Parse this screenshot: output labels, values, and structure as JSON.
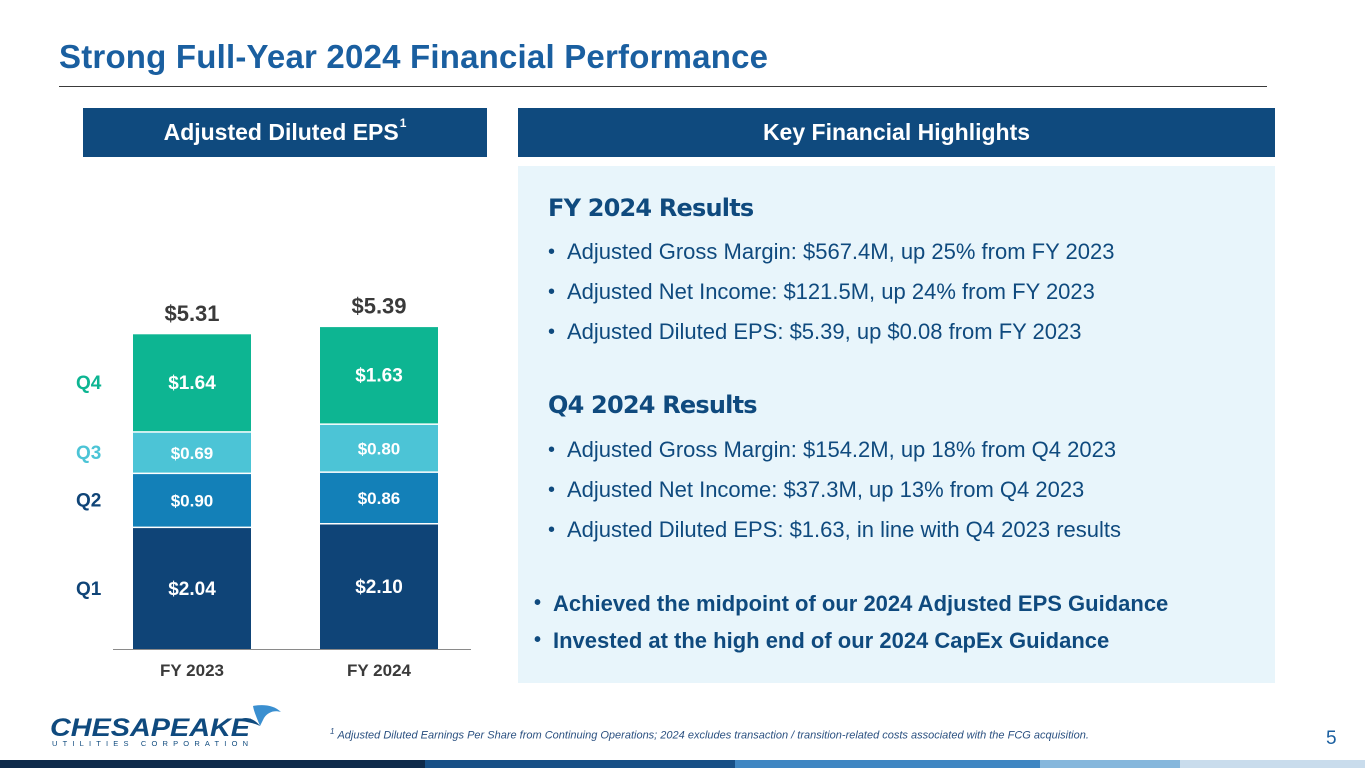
{
  "title": "Strong Full-Year 2024 Financial Performance",
  "left_panel": {
    "header": "Adjusted Diluted EPS",
    "header_sup": "1"
  },
  "right_panel": {
    "header": "Key Financial Highlights"
  },
  "chart_data": {
    "type": "bar",
    "stacked": true,
    "title": "Adjusted Diluted EPS",
    "categories": [
      "FY 2023",
      "FY 2024"
    ],
    "totals": [
      "$5.31",
      "$5.39"
    ],
    "series": [
      {
        "name": "Q1",
        "values": [
          2.04,
          2.1
        ],
        "labels": [
          "$2.04",
          "$2.10"
        ],
        "color": "#0f4477"
      },
      {
        "name": "Q2",
        "values": [
          0.9,
          0.86
        ],
        "labels": [
          "$0.90",
          "$0.86"
        ],
        "color": "#1380b8"
      },
      {
        "name": "Q3",
        "values": [
          0.69,
          0.8
        ],
        "labels": [
          "$0.69",
          "$0.80"
        ],
        "color": "#4cc4d6"
      },
      {
        "name": "Q4",
        "values": [
          1.64,
          1.63
        ],
        "labels": [
          "$1.64",
          "$1.63"
        ],
        "color": "#0db592"
      }
    ],
    "label_colors": {
      "Q1": "#0f4477",
      "Q2": "#0f4477",
      "Q3": "#4cc4d6",
      "Q4": "#0db592"
    },
    "ylim": [
      0,
      6
    ]
  },
  "highlights": {
    "fy_title": "FY 2024 Results",
    "fy_items": [
      "Adjusted Gross Margin: $567.4M, up 25% from FY 2023",
      "Adjusted Net Income: $121.5M, up 24% from FY 2023",
      "Adjusted Diluted EPS: $5.39, up $0.08 from FY 2023"
    ],
    "q4_title": "Q4 2024 Results",
    "q4_items": [
      "Adjusted Gross Margin: $154.2M, up 18% from Q4 2023",
      "Adjusted Net Income: $37.3M, up 13% from Q4 2023",
      "Adjusted Diluted EPS: $1.63, in line with  Q4 2023 results"
    ],
    "summary_items": [
      "Achieved the midpoint of our 2024 Adjusted EPS Guidance",
      "Invested at the high end of our 2024 CapEx Guidance"
    ]
  },
  "logo": {
    "name": "CHESAPEAKE",
    "sub": "UTILITIES CORPORATION"
  },
  "footnote": {
    "marker": "1",
    "text": "Adjusted Diluted Earnings Per Share from Continuing Operations; 2024 excludes transaction / transition-related costs associated with the FCG acquisition."
  },
  "page_number": "5",
  "colors": {
    "navy": "#0f4a7e",
    "title_blue": "#1a5fa0",
    "panel_bg": "#e8f5fb"
  },
  "bottom_bar_colors": [
    "#0e2a4a",
    "#174f86",
    "#3f86c2",
    "#86b7dc",
    "#c9dcec"
  ]
}
